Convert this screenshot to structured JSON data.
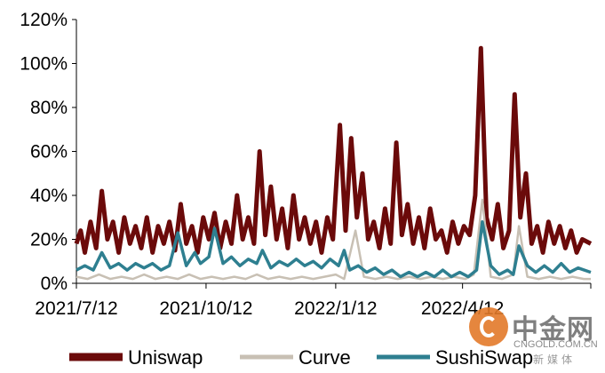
{
  "chart_data": {
    "type": "line",
    "title": "",
    "xlabel": "",
    "ylabel": "",
    "ylim": [
      0,
      120
    ],
    "y_ticks": [
      "0%",
      "20%",
      "40%",
      "60%",
      "80%",
      "100%",
      "120%"
    ],
    "x_ticks": [
      "2021/7/12",
      "2021/10/12",
      "2022/1/12",
      "2022/4/12"
    ],
    "x_range": [
      "2021/7/12",
      "2022/7/12"
    ],
    "grid": false,
    "legend_position": "bottom",
    "series": [
      {
        "name": "Uniswap",
        "color": "#6b0a0a",
        "points": [
          [
            "2021/7/12",
            18
          ],
          [
            "2021/7/15",
            24
          ],
          [
            "2021/7/18",
            14
          ],
          [
            "2021/7/22",
            28
          ],
          [
            "2021/7/26",
            16
          ],
          [
            "2021/7/30",
            42
          ],
          [
            "2021/8/3",
            20
          ],
          [
            "2021/8/7",
            28
          ],
          [
            "2021/8/11",
            14
          ],
          [
            "2021/8/15",
            30
          ],
          [
            "2021/8/19",
            18
          ],
          [
            "2021/8/23",
            26
          ],
          [
            "2021/8/27",
            16
          ],
          [
            "2021/8/31",
            30
          ],
          [
            "2021/9/4",
            14
          ],
          [
            "2021/9/8",
            26
          ],
          [
            "2021/9/12",
            18
          ],
          [
            "2021/9/16",
            28
          ],
          [
            "2021/9/20",
            15
          ],
          [
            "2021/9/24",
            36
          ],
          [
            "2021/9/28",
            18
          ],
          [
            "2021/10/2",
            26
          ],
          [
            "2021/10/6",
            14
          ],
          [
            "2021/10/10",
            30
          ],
          [
            "2021/10/14",
            20
          ],
          [
            "2021/10/18",
            32
          ],
          [
            "2021/10/22",
            16
          ],
          [
            "2021/10/26",
            28
          ],
          [
            "2021/10/30",
            18
          ],
          [
            "2021/11/3",
            40
          ],
          [
            "2021/11/7",
            20
          ],
          [
            "2021/11/11",
            30
          ],
          [
            "2021/11/15",
            18
          ],
          [
            "2021/11/19",
            60
          ],
          [
            "2021/11/23",
            22
          ],
          [
            "2021/11/27",
            44
          ],
          [
            "2021/12/1",
            20
          ],
          [
            "2021/12/5",
            34
          ],
          [
            "2021/12/9",
            16
          ],
          [
            "2021/12/13",
            40
          ],
          [
            "2021/12/17",
            20
          ],
          [
            "2021/12/21",
            30
          ],
          [
            "2021/12/25",
            18
          ],
          [
            "2021/12/29",
            28
          ],
          [
            "2022/1/2",
            14
          ],
          [
            "2022/1/6",
            30
          ],
          [
            "2022/1/10",
            20
          ],
          [
            "2022/1/15",
            72
          ],
          [
            "2022/1/19",
            24
          ],
          [
            "2022/1/23",
            66
          ],
          [
            "2022/1/27",
            30
          ],
          [
            "2022/1/31",
            50
          ],
          [
            "2022/2/4",
            20
          ],
          [
            "2022/2/8",
            28
          ],
          [
            "2022/2/12",
            16
          ],
          [
            "2022/2/16",
            34
          ],
          [
            "2022/2/20",
            18
          ],
          [
            "2022/2/24",
            64
          ],
          [
            "2022/2/28",
            22
          ],
          [
            "2022/3/4",
            36
          ],
          [
            "2022/3/8",
            18
          ],
          [
            "2022/3/12",
            30
          ],
          [
            "2022/3/16",
            16
          ],
          [
            "2022/3/20",
            34
          ],
          [
            "2022/3/24",
            20
          ],
          [
            "2022/3/28",
            24
          ],
          [
            "2022/4/1",
            14
          ],
          [
            "2022/4/5",
            28
          ],
          [
            "2022/4/9",
            18
          ],
          [
            "2022/4/13",
            26
          ],
          [
            "2022/4/17",
            22
          ],
          [
            "2022/4/21",
            40
          ],
          [
            "2022/4/25",
            107
          ],
          [
            "2022/4/29",
            30
          ],
          [
            "2022/5/3",
            20
          ],
          [
            "2022/5/7",
            36
          ],
          [
            "2022/5/11",
            16
          ],
          [
            "2022/5/15",
            24
          ],
          [
            "2022/5/19",
            86
          ],
          [
            "2022/5/23",
            30
          ],
          [
            "2022/5/27",
            50
          ],
          [
            "2022/5/31",
            18
          ],
          [
            "2022/6/4",
            26
          ],
          [
            "2022/6/8",
            14
          ],
          [
            "2022/6/12",
            28
          ],
          [
            "2022/6/16",
            18
          ],
          [
            "2022/6/20",
            26
          ],
          [
            "2022/6/24",
            16
          ],
          [
            "2022/6/28",
            24
          ],
          [
            "2022/7/2",
            14
          ],
          [
            "2022/7/6",
            20
          ],
          [
            "2022/7/12",
            18
          ]
        ]
      },
      {
        "name": "Curve",
        "color": "#c8c0b4",
        "points": [
          [
            "2021/7/12",
            3
          ],
          [
            "2021/7/20",
            2
          ],
          [
            "2021/7/28",
            4
          ],
          [
            "2021/8/5",
            2
          ],
          [
            "2021/8/13",
            3
          ],
          [
            "2021/8/21",
            2
          ],
          [
            "2021/8/29",
            4
          ],
          [
            "2021/9/6",
            2
          ],
          [
            "2021/9/14",
            3
          ],
          [
            "2021/9/22",
            2
          ],
          [
            "2021/9/30",
            4
          ],
          [
            "2021/10/8",
            2
          ],
          [
            "2021/10/16",
            3
          ],
          [
            "2021/10/24",
            2
          ],
          [
            "2021/11/1",
            3
          ],
          [
            "2021/11/9",
            2
          ],
          [
            "2021/11/17",
            4
          ],
          [
            "2021/11/25",
            2
          ],
          [
            "2021/12/3",
            3
          ],
          [
            "2021/12/11",
            2
          ],
          [
            "2021/12/19",
            3
          ],
          [
            "2021/12/27",
            2
          ],
          [
            "2022/1/4",
            3
          ],
          [
            "2022/1/12",
            4
          ],
          [
            "2022/1/18",
            2
          ],
          [
            "2022/1/26",
            24
          ],
          [
            "2022/2/1",
            3
          ],
          [
            "2022/2/9",
            2
          ],
          [
            "2022/2/17",
            3
          ],
          [
            "2022/2/25",
            2
          ],
          [
            "2022/3/5",
            3
          ],
          [
            "2022/3/13",
            2
          ],
          [
            "2022/3/21",
            3
          ],
          [
            "2022/3/29",
            2
          ],
          [
            "2022/4/6",
            3
          ],
          [
            "2022/4/14",
            2
          ],
          [
            "2022/4/20",
            4
          ],
          [
            "2022/4/26",
            38
          ],
          [
            "2022/5/2",
            3
          ],
          [
            "2022/5/10",
            2
          ],
          [
            "2022/5/18",
            4
          ],
          [
            "2022/5/22",
            26
          ],
          [
            "2022/5/28",
            3
          ],
          [
            "2022/6/5",
            2
          ],
          [
            "2022/6/13",
            3
          ],
          [
            "2022/6/21",
            2
          ],
          [
            "2022/6/29",
            3
          ],
          [
            "2022/7/7",
            2
          ],
          [
            "2022/7/12",
            2
          ]
        ]
      },
      {
        "name": "SushiSwap",
        "color": "#2e7f90",
        "points": [
          [
            "2021/7/12",
            6
          ],
          [
            "2021/7/18",
            8
          ],
          [
            "2021/7/24",
            6
          ],
          [
            "2021/7/30",
            14
          ],
          [
            "2021/8/5",
            7
          ],
          [
            "2021/8/11",
            9
          ],
          [
            "2021/8/17",
            6
          ],
          [
            "2021/8/23",
            9
          ],
          [
            "2021/8/29",
            7
          ],
          [
            "2021/9/4",
            9
          ],
          [
            "2021/9/10",
            6
          ],
          [
            "2021/9/16",
            8
          ],
          [
            "2021/9/22",
            23
          ],
          [
            "2021/9/28",
            8
          ],
          [
            "2021/10/4",
            14
          ],
          [
            "2021/10/8",
            9
          ],
          [
            "2021/10/14",
            12
          ],
          [
            "2021/10/18",
            25
          ],
          [
            "2021/10/24",
            9
          ],
          [
            "2021/10/30",
            12
          ],
          [
            "2021/11/5",
            8
          ],
          [
            "2021/11/11",
            11
          ],
          [
            "2021/11/17",
            9
          ],
          [
            "2021/11/21",
            15
          ],
          [
            "2021/11/27",
            7
          ],
          [
            "2021/12/3",
            10
          ],
          [
            "2021/12/9",
            8
          ],
          [
            "2021/12/15",
            11
          ],
          [
            "2021/12/21",
            8
          ],
          [
            "2021/12/27",
            10
          ],
          [
            "2022/1/2",
            7
          ],
          [
            "2022/1/8",
            11
          ],
          [
            "2022/1/14",
            8
          ],
          [
            "2022/1/18",
            15
          ],
          [
            "2022/1/22",
            6
          ],
          [
            "2022/1/28",
            8
          ],
          [
            "2022/2/3",
            5
          ],
          [
            "2022/2/9",
            7
          ],
          [
            "2022/2/15",
            4
          ],
          [
            "2022/2/21",
            6
          ],
          [
            "2022/2/27",
            3
          ],
          [
            "2022/3/5",
            5
          ],
          [
            "2022/3/11",
            3
          ],
          [
            "2022/3/17",
            5
          ],
          [
            "2022/3/23",
            3
          ],
          [
            "2022/3/29",
            6
          ],
          [
            "2022/4/4",
            3
          ],
          [
            "2022/4/10",
            5
          ],
          [
            "2022/4/16",
            3
          ],
          [
            "2022/4/22",
            6
          ],
          [
            "2022/4/26",
            28
          ],
          [
            "2022/5/2",
            8
          ],
          [
            "2022/5/8",
            4
          ],
          [
            "2022/5/14",
            6
          ],
          [
            "2022/5/18",
            4
          ],
          [
            "2022/5/22",
            17
          ],
          [
            "2022/5/28",
            8
          ],
          [
            "2022/6/3",
            5
          ],
          [
            "2022/6/9",
            8
          ],
          [
            "2022/6/15",
            5
          ],
          [
            "2022/6/21",
            9
          ],
          [
            "2022/6/27",
            5
          ],
          [
            "2022/7/3",
            7
          ],
          [
            "2022/7/12",
            5
          ]
        ]
      }
    ]
  },
  "watermark": {
    "cn": "中金网",
    "en": "CNGOLD.COM.CN",
    "sub": "新媒体"
  }
}
